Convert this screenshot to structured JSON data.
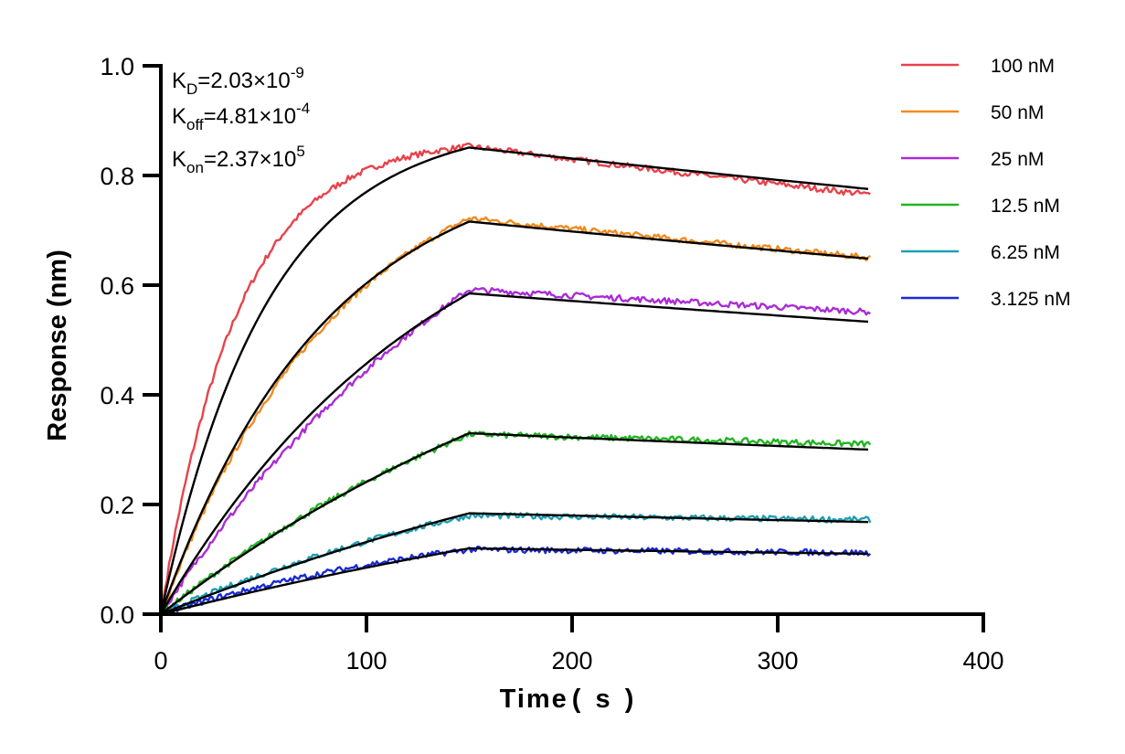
{
  "chart_data": {
    "type": "line",
    "xlabel": "Time",
    "xlabel_unit": "( s )",
    "ylabel": "Response (nm)",
    "xlim": [
      0,
      400
    ],
    "ylim": [
      0,
      1.0
    ],
    "xticks": [
      0,
      100,
      200,
      300,
      400
    ],
    "yticks": [
      0,
      0.2,
      0.4,
      0.6,
      0.8,
      1.0
    ],
    "xtick_labels": [
      "0",
      "100",
      "200",
      "300",
      "400"
    ],
    "ytick_labels": [
      "0.0",
      "0.2",
      "0.4",
      "0.6",
      "0.8",
      "1.0"
    ],
    "grid": false,
    "legend_position": "top-right",
    "association_end": 150,
    "dissociation_end": 345,
    "annotations": {
      "kd": {
        "base": "K",
        "sub": "D",
        "value": "=2.03×10",
        "exp": "-9"
      },
      "koff": {
        "base": "K",
        "sub": "off",
        "value": "=4.81×10",
        "exp": "-4"
      },
      "kon": {
        "base": "K",
        "sub": "on",
        "value": "=2.37×10",
        "exp": "5"
      }
    },
    "fit_color": "#000000",
    "series": [
      {
        "name": "100 nM",
        "color": "#e8424a",
        "fit_plateau": 0.851,
        "fit_end": 0.775,
        "kobs": 0.0193,
        "data_plateau": 0.853,
        "data_end": 0.765,
        "data_kobs": 0.027
      },
      {
        "name": "50 nM",
        "color": "#f28a1e",
        "fit_plateau": 0.716,
        "fit_end": 0.648,
        "kobs": 0.0125,
        "data_plateau": 0.722,
        "data_end": 0.65,
        "data_kobs": 0.0115
      },
      {
        "name": "25 nM",
        "color": "#aa2bd6",
        "fit_plateau": 0.585,
        "fit_end": 0.533,
        "kobs": 0.0075,
        "data_plateau": 0.592,
        "data_end": 0.551,
        "data_kobs": 0.0055
      },
      {
        "name": "12.5 nM",
        "color": "#22b522",
        "fit_plateau": 0.33,
        "fit_end": 0.3,
        "kobs": 0.004,
        "data_plateau": 0.328,
        "data_end": 0.31,
        "data_kobs": 0.0045
      },
      {
        "name": "6.25 nM",
        "color": "#1f9fb3",
        "fit_plateau": 0.184,
        "fit_end": 0.168,
        "kobs": 0.003,
        "data_plateau": 0.18,
        "data_end": 0.172,
        "data_kobs": 0.0045
      },
      {
        "name": "3.125 nM",
        "color": "#1a2ad6",
        "fit_plateau": 0.12,
        "fit_end": 0.11,
        "kobs": 0.0025,
        "data_plateau": 0.118,
        "data_end": 0.112,
        "data_kobs": 0.006
      }
    ]
  }
}
